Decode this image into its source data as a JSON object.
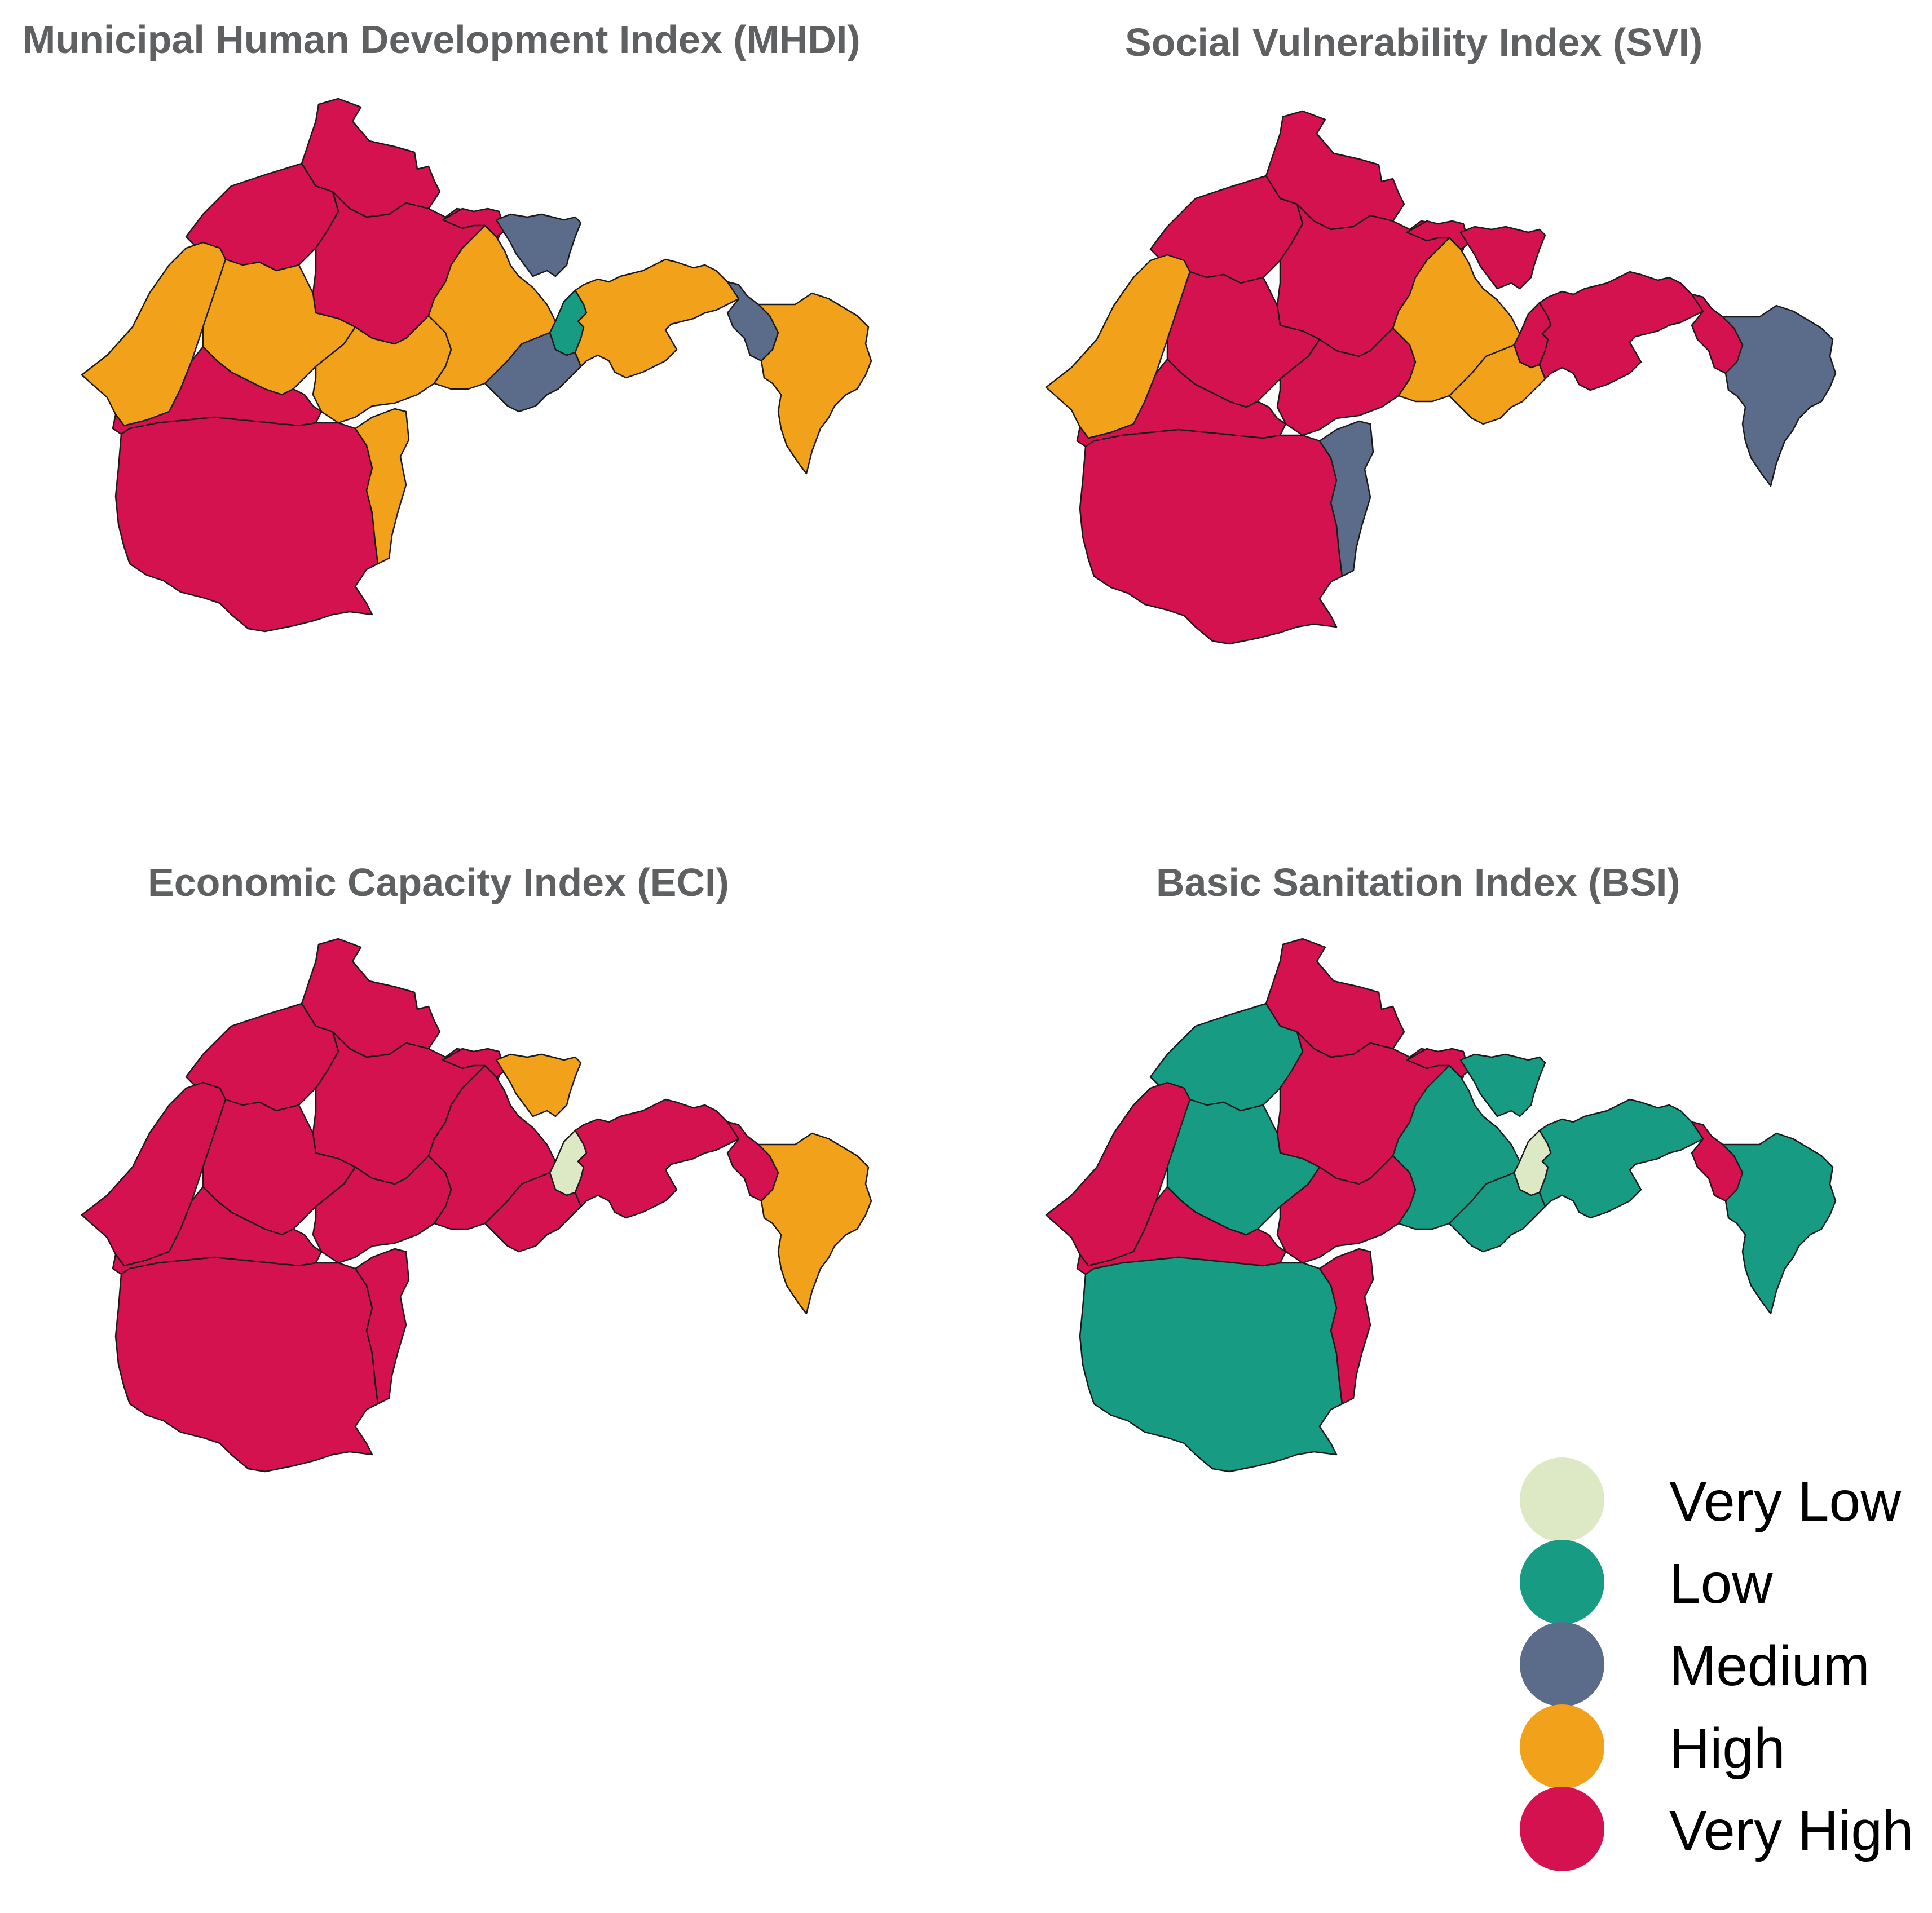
{
  "legend_colors": {
    "very_low": "#dde8c4",
    "low": "#179c83",
    "medium": "#5b6b8a",
    "high": "#f2a11b",
    "very_high": "#d4124f"
  },
  "legend": {
    "items": [
      {
        "label": "Very Low",
        "key": "very_low"
      },
      {
        "label": "Low",
        "key": "low"
      },
      {
        "label": "Medium",
        "key": "medium"
      },
      {
        "label": "High",
        "key": "high"
      },
      {
        "label": "Very High",
        "key": "very_high"
      }
    ]
  },
  "maps": [
    {
      "title": "Municipal Human Development Index (MHDI)",
      "regions": {
        "north_tip": "very_high",
        "north_west": "very_high",
        "north_center": "very_high",
        "north_east": "very_high",
        "west_strip": "high",
        "center_west": "high",
        "center": "high",
        "center_east": "high",
        "south_west": "very_high",
        "south_main": "very_high",
        "south_east_strip": "high",
        "gap_region": "medium",
        "urban_core": "low",
        "urban_south": "medium",
        "east_coast": "high",
        "far_east_small": "medium",
        "far_east": "high"
      }
    },
    {
      "title": "Social Vulnerability Index (SVI)",
      "regions": {
        "north_tip": "very_high",
        "north_west": "very_high",
        "north_center": "very_high",
        "north_east": "very_high",
        "west_strip": "high",
        "center_west": "very_high",
        "center": "very_high",
        "center_east": "high",
        "south_west": "very_high",
        "south_main": "very_high",
        "south_east_strip": "medium",
        "gap_region": "very_high",
        "urban_core": "very_high",
        "urban_south": "high",
        "east_coast": "very_high",
        "far_east_small": "very_high",
        "far_east": "medium"
      }
    },
    {
      "title": "Economic Capacity Index (ECI)",
      "regions": {
        "north_tip": "very_high",
        "north_west": "very_high",
        "north_center": "very_high",
        "north_east": "very_high",
        "west_strip": "very_high",
        "center_west": "very_high",
        "center": "very_high",
        "center_east": "very_high",
        "south_west": "very_high",
        "south_main": "very_high",
        "south_east_strip": "very_high",
        "gap_region": "high",
        "urban_core": "very_low",
        "urban_south": "very_high",
        "east_coast": "very_high",
        "far_east_small": "very_high",
        "far_east": "high"
      }
    },
    {
      "title": "Basic Sanitation Index (BSI)",
      "regions": {
        "north_tip": "very_high",
        "north_west": "low",
        "north_center": "very_high",
        "north_east": "very_high",
        "west_strip": "very_high",
        "center_west": "low",
        "center": "very_high",
        "center_east": "low",
        "south_west": "very_high",
        "south_main": "low",
        "south_east_strip": "very_high",
        "gap_region": "low",
        "urban_core": "very_low",
        "urban_south": "low",
        "east_coast": "low",
        "far_east_small": "very_high",
        "far_east": "low"
      }
    }
  ]
}
